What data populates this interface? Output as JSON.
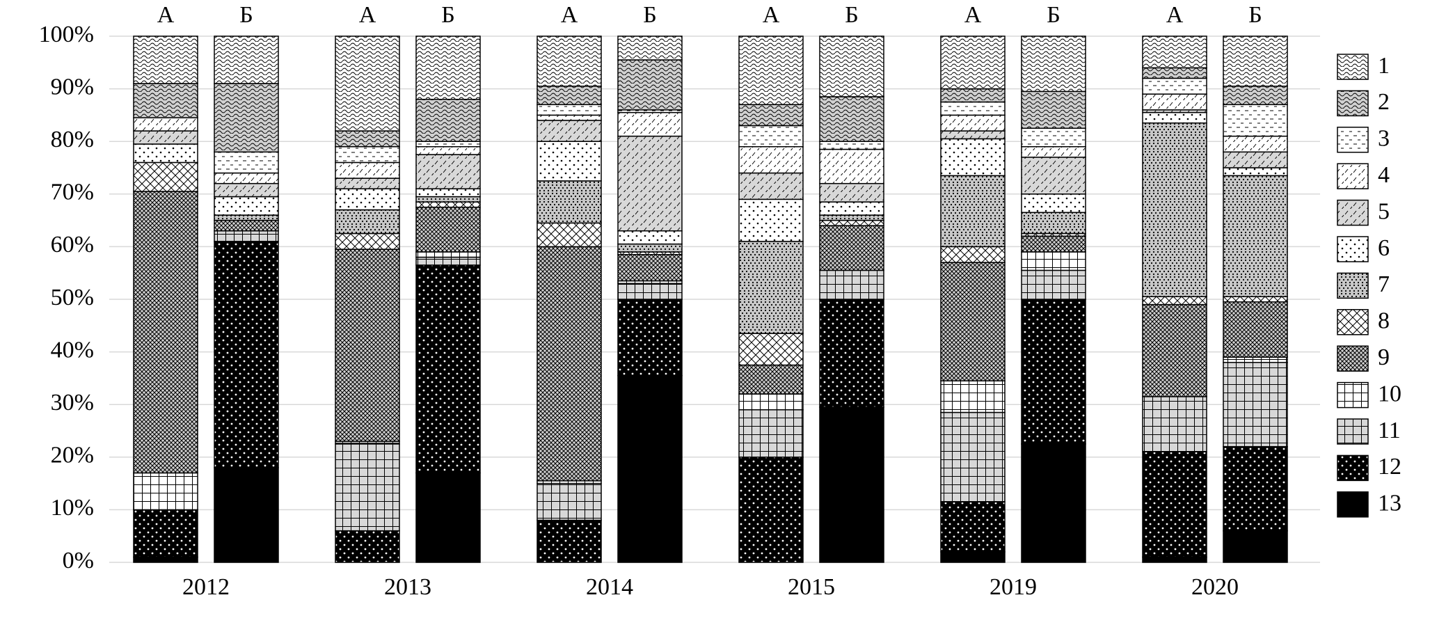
{
  "chart_data": {
    "type": "stacked_bar",
    "groups": [
      "2012",
      "2013",
      "2014",
      "2015",
      "2019",
      "2020"
    ],
    "categories": [
      "А",
      "Б",
      "А",
      "Б",
      "А",
      "Б",
      "А",
      "Б",
      "А",
      "Б",
      "А",
      "Б"
    ],
    "ylim": [
      0,
      100
    ],
    "yticks": [
      {
        "value": 0,
        "label": "0%"
      },
      {
        "value": 10,
        "label": "10%"
      },
      {
        "value": 20,
        "label": "20%"
      },
      {
        "value": 30,
        "label": "30%"
      },
      {
        "value": 40,
        "label": "40%"
      },
      {
        "value": 50,
        "label": "50%"
      },
      {
        "value": 60,
        "label": "60%"
      },
      {
        "value": 70,
        "label": "70%"
      },
      {
        "value": 80,
        "label": "80%"
      },
      {
        "value": 90,
        "label": "90%"
      },
      {
        "value": 100,
        "label": "100%"
      }
    ],
    "grid": true,
    "legend": "right",
    "series": [
      {
        "name": "1",
        "color": "#ffffff",
        "values": [
          9,
          9,
          18,
          12,
          9.5,
          4.5,
          13,
          11.5,
          10,
          10.5,
          6,
          9.5
        ]
      },
      {
        "name": "2",
        "color": "#d0d0d0",
        "values": [
          6.5,
          13,
          3,
          8,
          3.5,
          9.5,
          4,
          8.5,
          2.5,
          7,
          2,
          3.5
        ]
      },
      {
        "name": "3",
        "color": "#ffffff",
        "values": [
          0,
          4,
          3,
          1,
          2,
          0.5,
          4,
          1.5,
          2.5,
          3.5,
          3,
          6
        ]
      },
      {
        "name": "4",
        "color": "#ffffff",
        "values": [
          2.5,
          2,
          3,
          1.5,
          1,
          4.5,
          5,
          6.5,
          3,
          2,
          3,
          3
        ]
      },
      {
        "name": "5",
        "color": "#d8d8d8",
        "values": [
          2.5,
          2.5,
          2,
          6.5,
          4,
          18,
          5,
          3.5,
          1.5,
          7,
          0.5,
          3
        ]
      },
      {
        "name": "6",
        "color": "#ffffff",
        "values": [
          3.5,
          3.5,
          4,
          1.5,
          7.5,
          2.5,
          8,
          2.5,
          7,
          3.5,
          2,
          1.5
        ]
      },
      {
        "name": "7",
        "color": "#c8c8c8",
        "values": [
          0,
          1,
          4.5,
          1,
          8,
          1.5,
          17.5,
          1,
          13.5,
          4,
          33,
          23
        ]
      },
      {
        "name": "8",
        "color": "#ffffff",
        "values": [
          5.5,
          0,
          3,
          1,
          4.5,
          0.5,
          6,
          1,
          3,
          0.5,
          1.5,
          1
        ]
      },
      {
        "name": "9",
        "color": "#d0d0d0",
        "values": [
          53.5,
          2,
          36.5,
          8.5,
          44.5,
          5,
          5.5,
          8.5,
          22.5,
          3,
          17.5,
          10.5
        ]
      },
      {
        "name": "10",
        "color": "#ffffff",
        "values": [
          7,
          0,
          0.5,
          1,
          0.5,
          0.5,
          3,
          0,
          6,
          3.5,
          0,
          1
        ]
      },
      {
        "name": "11",
        "color": "#d8d8d8",
        "values": [
          0,
          2,
          16.5,
          1.5,
          7,
          3,
          9,
          5.5,
          17,
          5.5,
          10.5,
          16
        ]
      },
      {
        "name": "12",
        "color": "#000000",
        "values": [
          9,
          43,
          6,
          39.5,
          8,
          14.5,
          20,
          20.5,
          9.5,
          27.5,
          20,
          16
        ]
      },
      {
        "name": "13",
        "color": "#000000",
        "values": [
          1,
          18,
          0,
          17,
          0,
          35.5,
          0,
          29.5,
          2,
          22.5,
          1,
          6
        ]
      }
    ]
  }
}
